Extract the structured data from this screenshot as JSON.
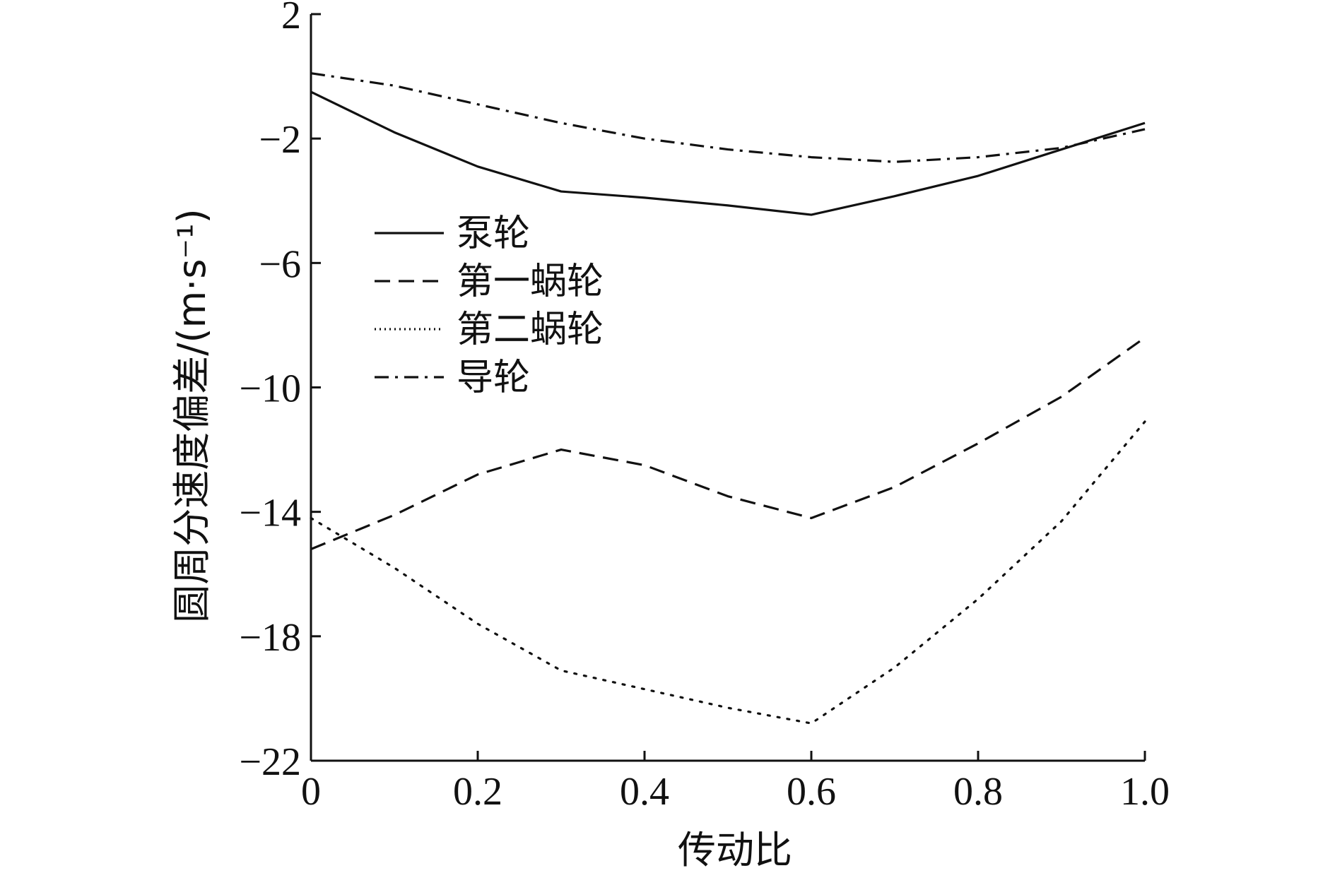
{
  "chart_data": {
    "type": "line",
    "title": "",
    "xlabel": "传动比",
    "ylabel": "圆周分速度偏差/(m·s⁻¹)",
    "xlim": [
      0,
      1.0
    ],
    "ylim": [
      -22,
      2
    ],
    "x_ticks": [
      0,
      0.2,
      0.4,
      0.6,
      0.8,
      1.0
    ],
    "x_tick_labels": [
      "0",
      "0.2",
      "0.4",
      "0.6",
      "0.8",
      "1.0"
    ],
    "y_ticks": [
      2,
      -2,
      -6,
      -10,
      -14,
      -18,
      -22
    ],
    "y_tick_labels": [
      "2",
      "−2",
      "−6",
      "−10",
      "−14",
      "−18",
      "−22"
    ],
    "grid": false,
    "legend_position": "upper-left",
    "x": [
      0,
      0.1,
      0.2,
      0.3,
      0.4,
      0.5,
      0.6,
      0.7,
      0.8,
      0.9,
      1.0
    ],
    "series": [
      {
        "name": "泵轮",
        "style": "solid",
        "values": [
          -0.5,
          -1.8,
          -2.9,
          -3.7,
          -3.9,
          -4.15,
          -4.45,
          -3.85,
          -3.2,
          -2.35,
          -1.5
        ]
      },
      {
        "name": "第一蜗轮",
        "style": "dashed",
        "values": [
          -15.2,
          -14.1,
          -12.8,
          -12.0,
          -12.5,
          -13.5,
          -14.2,
          -13.2,
          -11.8,
          -10.3,
          -8.4
        ]
      },
      {
        "name": "第二蜗轮",
        "style": "dotted",
        "values": [
          -14.2,
          -15.8,
          -17.6,
          -19.1,
          -19.7,
          -20.3,
          -20.8,
          -19.0,
          -16.8,
          -14.3,
          -11.1
        ]
      },
      {
        "name": "导轮",
        "style": "dash-dot",
        "values": [
          0.1,
          -0.3,
          -0.9,
          -1.5,
          -2.0,
          -2.35,
          -2.6,
          -2.75,
          -2.6,
          -2.3,
          -1.7
        ]
      }
    ]
  }
}
